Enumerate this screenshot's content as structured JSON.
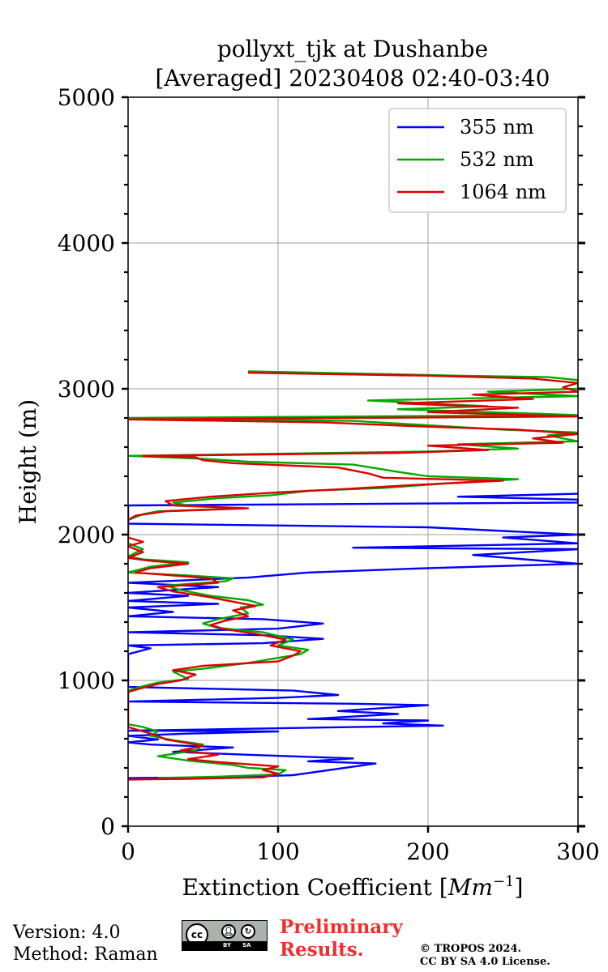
{
  "chart_data": {
    "type": "line",
    "title_line1": "pollyxt_tjk at Dushanbe",
    "title_line2": "[Averaged] 20230408 02:40-03:40",
    "xlabel": "Extinction Coefficient [",
    "xlabel_unit": "Mm",
    "xlabel_exp": "−1",
    "xlabel_close": "]",
    "ylabel": "Height (m)",
    "xlim": [
      0,
      300
    ],
    "ylim": [
      0,
      5000
    ],
    "xticks": [
      0,
      100,
      200,
      300
    ],
    "xtick_labels": [
      "0",
      "100",
      "200",
      "300"
    ],
    "yticks": [
      0,
      1000,
      2000,
      3000,
      4000,
      5000
    ],
    "ytick_labels": [
      "0",
      "1000",
      "2000",
      "3000",
      "4000",
      "5000"
    ],
    "grid": true,
    "legend_position": "top-right",
    "series": [
      {
        "name": "355 nm",
        "color": "#0000ff",
        "points": [
          [
            0,
            330
          ],
          [
            60,
            335
          ],
          [
            110,
            350
          ],
          [
            165,
            430
          ],
          [
            120,
            445
          ],
          [
            150,
            465
          ],
          [
            80,
            490
          ],
          [
            30,
            510
          ],
          [
            70,
            540
          ],
          [
            15,
            560
          ],
          [
            0,
            575
          ],
          [
            20,
            595
          ],
          [
            0,
            620
          ],
          [
            40,
            635
          ],
          [
            100,
            650
          ],
          [
            0,
            655
          ],
          [
            210,
            690
          ],
          [
            170,
            705
          ],
          [
            200,
            725
          ],
          [
            120,
            735
          ],
          [
            180,
            770
          ],
          [
            140,
            790
          ],
          [
            200,
            830
          ],
          [
            150,
            840
          ],
          [
            0,
            855
          ],
          [
            100,
            880
          ],
          [
            140,
            900
          ],
          [
            110,
            930
          ],
          [
            0,
            955
          ],
          [
            0,
            1180
          ],
          [
            15,
            1220
          ],
          [
            0,
            1240
          ],
          [
            90,
            1255
          ],
          [
            130,
            1285
          ],
          [
            90,
            1310
          ],
          [
            0,
            1330
          ],
          [
            100,
            1355
          ],
          [
            130,
            1390
          ],
          [
            90,
            1420
          ],
          [
            0,
            1440
          ],
          [
            30,
            1470
          ],
          [
            0,
            1500
          ],
          [
            60,
            1525
          ],
          [
            0,
            1545
          ],
          [
            40,
            1580
          ],
          [
            0,
            1600
          ],
          [
            60,
            1640
          ],
          [
            0,
            1670
          ],
          [
            80,
            1705
          ],
          [
            120,
            1740
          ],
          [
            200,
            1770
          ],
          [
            300,
            1800
          ],
          [
            230,
            1860
          ],
          [
            300,
            1900
          ],
          [
            150,
            1910
          ],
          [
            300,
            1940
          ],
          [
            250,
            1980
          ],
          [
            300,
            2000
          ],
          [
            200,
            2050
          ],
          [
            0,
            2075
          ],
          [
            0,
            2200
          ],
          [
            300,
            2220
          ],
          [
            300,
            2240
          ],
          [
            220,
            2260
          ],
          [
            300,
            2280
          ]
        ]
      },
      {
        "name": "532 nm",
        "color": "#00aa00",
        "points": [
          [
            20,
            330
          ],
          [
            60,
            340
          ],
          [
            100,
            355
          ],
          [
            105,
            385
          ],
          [
            80,
            400
          ],
          [
            70,
            420
          ],
          [
            40,
            450
          ],
          [
            20,
            480
          ],
          [
            45,
            520
          ],
          [
            50,
            560
          ],
          [
            30,
            590
          ],
          [
            15,
            620
          ],
          [
            20,
            650
          ],
          [
            10,
            680
          ],
          [
            0,
            700
          ],
          [
            0,
            880
          ],
          [
            0,
            930
          ],
          [
            10,
            960
          ],
          [
            20,
            985
          ],
          [
            40,
            1010
          ],
          [
            30,
            1060
          ],
          [
            50,
            1080
          ],
          [
            80,
            1120
          ],
          [
            115,
            1180
          ],
          [
            120,
            1210
          ],
          [
            100,
            1240
          ],
          [
            110,
            1280
          ],
          [
            90,
            1330
          ],
          [
            60,
            1360
          ],
          [
            50,
            1390
          ],
          [
            60,
            1420
          ],
          [
            80,
            1460
          ],
          [
            75,
            1500
          ],
          [
            90,
            1520
          ],
          [
            80,
            1550
          ],
          [
            55,
            1580
          ],
          [
            35,
            1620
          ],
          [
            25,
            1650
          ],
          [
            65,
            1680
          ],
          [
            70,
            1700
          ],
          [
            40,
            1720
          ],
          [
            0,
            1740
          ],
          [
            15,
            1780
          ],
          [
            40,
            1810
          ],
          [
            10,
            1830
          ],
          [
            0,
            1850
          ],
          [
            10,
            1900
          ],
          [
            0,
            1940
          ],
          [
            0,
            2100
          ],
          [
            10,
            2140
          ],
          [
            20,
            2160
          ],
          [
            75,
            2180
          ],
          [
            40,
            2200
          ],
          [
            30,
            2220
          ],
          [
            60,
            2250
          ],
          [
            95,
            2270
          ],
          [
            120,
            2300
          ],
          [
            170,
            2320
          ],
          [
            210,
            2350
          ],
          [
            260,
            2380
          ],
          [
            200,
            2400
          ],
          [
            180,
            2430
          ],
          [
            150,
            2480
          ],
          [
            80,
            2500
          ],
          [
            50,
            2520
          ],
          [
            0,
            2540
          ],
          [
            200,
            2570
          ],
          [
            260,
            2590
          ],
          [
            220,
            2620
          ],
          [
            300,
            2640
          ],
          [
            280,
            2680
          ],
          [
            300,
            2700
          ],
          [
            250,
            2720
          ],
          [
            150,
            2780
          ],
          [
            0,
            2800
          ],
          [
            300,
            2820
          ],
          [
            180,
            2860
          ],
          [
            240,
            2880
          ],
          [
            160,
            2920
          ],
          [
            300,
            2950
          ],
          [
            240,
            2980
          ],
          [
            300,
            3000
          ],
          [
            300,
            3060
          ],
          [
            280,
            3080
          ],
          [
            220,
            3090
          ],
          [
            80,
            3120
          ]
        ]
      },
      {
        "name": "1064 nm",
        "color": "#dd0000",
        "points": [
          [
            0,
            320
          ],
          [
            40,
            325
          ],
          [
            90,
            335
          ],
          [
            100,
            360
          ],
          [
            90,
            385
          ],
          [
            100,
            410
          ],
          [
            60,
            440
          ],
          [
            40,
            460
          ],
          [
            60,
            490
          ],
          [
            35,
            520
          ],
          [
            50,
            550
          ],
          [
            40,
            570
          ],
          [
            25,
            595
          ],
          [
            20,
            620
          ],
          [
            10,
            650
          ],
          [
            0,
            680
          ],
          [
            0,
            710
          ],
          [
            0,
            880
          ],
          [
            0,
            920
          ],
          [
            10,
            950
          ],
          [
            20,
            975
          ],
          [
            35,
            1000
          ],
          [
            45,
            1040
          ],
          [
            30,
            1070
          ],
          [
            50,
            1100
          ],
          [
            100,
            1130
          ],
          [
            110,
            1170
          ],
          [
            115,
            1200
          ],
          [
            95,
            1240
          ],
          [
            105,
            1280
          ],
          [
            85,
            1320
          ],
          [
            65,
            1350
          ],
          [
            55,
            1380
          ],
          [
            65,
            1410
          ],
          [
            80,
            1440
          ],
          [
            70,
            1480
          ],
          [
            85,
            1510
          ],
          [
            70,
            1540
          ],
          [
            55,
            1570
          ],
          [
            30,
            1610
          ],
          [
            20,
            1640
          ],
          [
            60,
            1670
          ],
          [
            55,
            1700
          ],
          [
            30,
            1720
          ],
          [
            5,
            1740
          ],
          [
            15,
            1770
          ],
          [
            40,
            1800
          ],
          [
            15,
            1820
          ],
          [
            0,
            1840
          ],
          [
            10,
            1880
          ],
          [
            0,
            1920
          ],
          [
            10,
            1950
          ],
          [
            0,
            1980
          ],
          [
            0,
            2100
          ],
          [
            5,
            2130
          ],
          [
            25,
            2160
          ],
          [
            80,
            2180
          ],
          [
            30,
            2200
          ],
          [
            25,
            2230
          ],
          [
            55,
            2260
          ],
          [
            100,
            2290
          ],
          [
            140,
            2310
          ],
          [
            190,
            2340
          ],
          [
            250,
            2370
          ],
          [
            170,
            2390
          ],
          [
            160,
            2420
          ],
          [
            140,
            2460
          ],
          [
            70,
            2490
          ],
          [
            50,
            2510
          ],
          [
            45,
            2530
          ],
          [
            10,
            2540
          ],
          [
            180,
            2560
          ],
          [
            240,
            2580
          ],
          [
            200,
            2610
          ],
          [
            290,
            2630
          ],
          [
            270,
            2660
          ],
          [
            300,
            2690
          ],
          [
            260,
            2720
          ],
          [
            200,
            2740
          ],
          [
            130,
            2770
          ],
          [
            0,
            2790
          ],
          [
            300,
            2810
          ],
          [
            200,
            2840
          ],
          [
            260,
            2870
          ],
          [
            180,
            2900
          ],
          [
            270,
            2930
          ],
          [
            230,
            2960
          ],
          [
            300,
            2980
          ],
          [
            290,
            3010
          ],
          [
            300,
            3040
          ],
          [
            270,
            3070
          ],
          [
            200,
            3090
          ],
          [
            80,
            3110
          ]
        ]
      }
    ]
  },
  "footer": {
    "version": "Version: 4.0",
    "method": "Method: Raman",
    "badge_cc": "cc",
    "badge_by": "BY",
    "badge_sa": "SA",
    "preliminary_line1": "Preliminary",
    "preliminary_line2": "Results.",
    "copyright_line1": "© TROPOS 2024.",
    "copyright_line2": "CC BY SA 4.0 License."
  }
}
